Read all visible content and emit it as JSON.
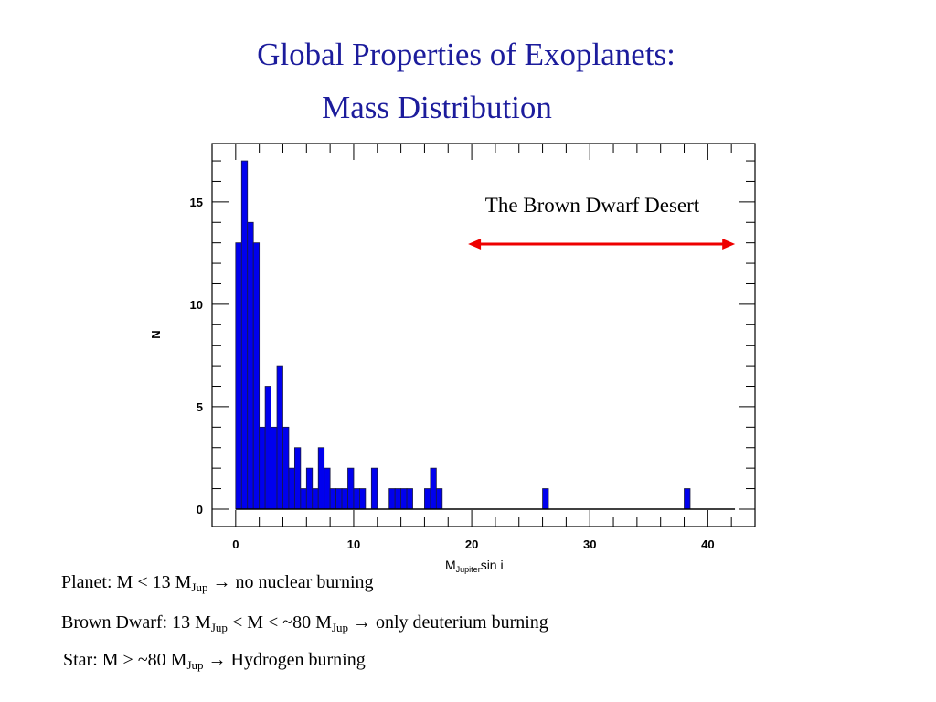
{
  "title": {
    "line1": "Global Properties of Exoplanets:",
    "line2": "Mass Distribution"
  },
  "chart_data": {
    "type": "bar",
    "histogram": true,
    "bin_width": 0.5,
    "bin_starts": [
      0,
      0.5,
      1,
      1.5,
      2,
      2.5,
      3,
      3.5,
      4,
      4.5,
      5,
      5.5,
      6,
      6.5,
      7,
      7.5,
      8,
      8.5,
      9,
      9.5,
      10,
      10.5,
      11,
      11.5,
      12,
      12.5,
      13,
      13.5,
      14,
      14.5,
      15,
      15.5,
      16,
      16.5,
      17,
      26,
      38
    ],
    "values": [
      13,
      17,
      14,
      13,
      4,
      6,
      4,
      7,
      4,
      2,
      3,
      1,
      2,
      1,
      3,
      2,
      1,
      1,
      1,
      2,
      1,
      1,
      0,
      2,
      0,
      0,
      1,
      1,
      1,
      1,
      0,
      0,
      1,
      2,
      1,
      1,
      1
    ],
    "xlabel": "M",
    "xlabel_sub": "Jupiter",
    "xlabel_suffix": "sin i",
    "ylabel": "N",
    "xlim": [
      -2,
      44
    ],
    "ylim": [
      -0.85,
      17.85
    ],
    "xticks": [
      0,
      10,
      20,
      30,
      40
    ],
    "yticks": [
      0,
      5,
      10,
      15
    ],
    "bar_color": "#0000ee",
    "annotation": "The Brown Dwarf Desert",
    "annotation_arrow": {
      "from": 20,
      "to": 42,
      "color": "#ee0000"
    }
  },
  "notes": [
    {
      "a": "Planet: M < 13 M",
      "sub1": "Jup",
      "b": " → no nuclear burning"
    },
    {
      "a": "Brown Dwarf: 13 M",
      "sub1": "Jup",
      "b": " < M < ~80 M",
      "sub2": "Jup",
      "c": " → only deuterium burning"
    },
    {
      "a": "Star:  M > ~80 M",
      "sub1": "Jup",
      "b": " → Hydrogen burning"
    }
  ]
}
